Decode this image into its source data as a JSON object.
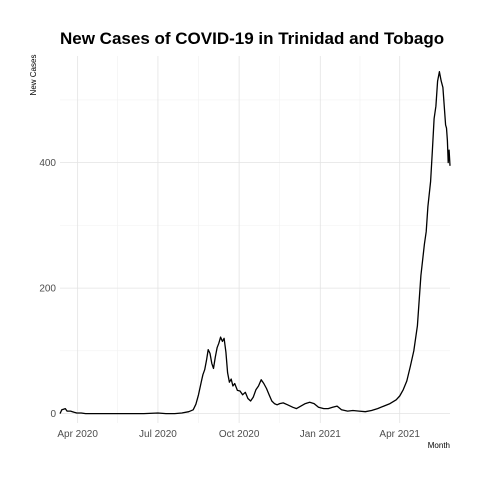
{
  "chart_data": {
    "type": "line",
    "title": "New Cases of COVID-19 in Trinidad and Tobago",
    "xlabel": "Month",
    "ylabel": "New Cases",
    "x_ticks": [
      "Apr 2020",
      "Jul 2020",
      "Oct 2020",
      "Jan 2021",
      "Apr 2021"
    ],
    "y_ticks": [
      0,
      200,
      400
    ],
    "xlim": [
      "2020-03-12",
      "2021-05-28"
    ],
    "ylim": [
      -15,
      570
    ],
    "grid": true,
    "legend": "none",
    "line_color": "#000000",
    "series": [
      {
        "x": [
          "2020-03-12",
          "2020-03-14",
          "2020-03-16",
          "2020-03-18",
          "2020-03-20",
          "2020-03-22",
          "2020-03-24",
          "2020-03-26",
          "2020-03-28",
          "2020-03-31",
          "2020-04-05",
          "2020-04-10",
          "2020-04-20",
          "2020-05-01",
          "2020-05-15",
          "2020-06-01",
          "2020-06-15",
          "2020-07-01",
          "2020-07-10",
          "2020-07-20",
          "2020-07-28",
          "2020-08-05",
          "2020-08-10",
          "2020-08-13",
          "2020-08-16",
          "2020-08-19",
          "2020-08-21",
          "2020-08-23",
          "2020-08-25",
          "2020-08-27",
          "2020-08-29",
          "2020-08-31",
          "2020-09-02",
          "2020-09-04",
          "2020-09-06",
          "2020-09-08",
          "2020-09-10",
          "2020-09-12",
          "2020-09-14",
          "2020-09-16",
          "2020-09-18",
          "2020-09-20",
          "2020-09-22",
          "2020-09-24",
          "2020-09-26",
          "2020-09-29",
          "2020-10-02",
          "2020-10-05",
          "2020-10-08",
          "2020-10-11",
          "2020-10-14",
          "2020-10-17",
          "2020-10-20",
          "2020-10-23",
          "2020-10-26",
          "2020-10-29",
          "2020-11-01",
          "2020-11-04",
          "2020-11-07",
          "2020-11-10",
          "2020-11-13",
          "2020-11-16",
          "2020-11-20",
          "2020-11-25",
          "2020-12-01",
          "2020-12-05",
          "2020-12-10",
          "2020-12-15",
          "2020-12-20",
          "2020-12-25",
          "2020-12-30",
          "2021-01-05",
          "2021-01-10",
          "2021-01-15",
          "2021-01-20",
          "2021-01-25",
          "2021-02-01",
          "2021-02-07",
          "2021-02-14",
          "2021-02-21",
          "2021-02-28",
          "2021-03-07",
          "2021-03-14",
          "2021-03-21",
          "2021-03-28",
          "2021-04-01",
          "2021-04-05",
          "2021-04-09",
          "2021-04-13",
          "2021-04-17",
          "2021-04-21",
          "2021-04-25",
          "2021-04-29",
          "2021-05-01",
          "2021-05-03",
          "2021-05-06",
          "2021-05-08",
          "2021-05-10",
          "2021-05-12",
          "2021-05-14",
          "2021-05-16",
          "2021-05-18",
          "2021-05-20",
          "2021-05-21",
          "2021-05-22",
          "2021-05-23",
          "2021-05-24",
          "2021-05-25",
          "2021-05-26",
          "2021-05-27",
          "2021-05-28"
        ],
        "y": [
          0,
          6,
          7,
          8,
          4,
          4,
          4,
          3,
          2,
          1,
          1,
          0,
          0,
          0,
          0,
          0,
          0,
          1,
          0,
          0,
          1,
          3,
          6,
          15,
          30,
          50,
          62,
          70,
          85,
          102,
          96,
          80,
          72,
          90,
          105,
          112,
          122,
          115,
          120,
          98,
          65,
          50,
          55,
          44,
          48,
          37,
          36,
          30,
          34,
          24,
          20,
          26,
          38,
          44,
          54,
          48,
          40,
          30,
          20,
          16,
          14,
          16,
          17,
          14,
          10,
          8,
          12,
          16,
          18,
          16,
          10,
          8,
          8,
          10,
          12,
          6,
          4,
          5,
          4,
          3,
          5,
          8,
          12,
          16,
          22,
          28,
          38,
          52,
          75,
          100,
          140,
          220,
          270,
          290,
          330,
          370,
          420,
          470,
          490,
          530,
          545,
          530,
          520,
          500,
          480,
          460,
          455,
          435,
          400,
          420,
          395
        ]
      }
    ]
  }
}
